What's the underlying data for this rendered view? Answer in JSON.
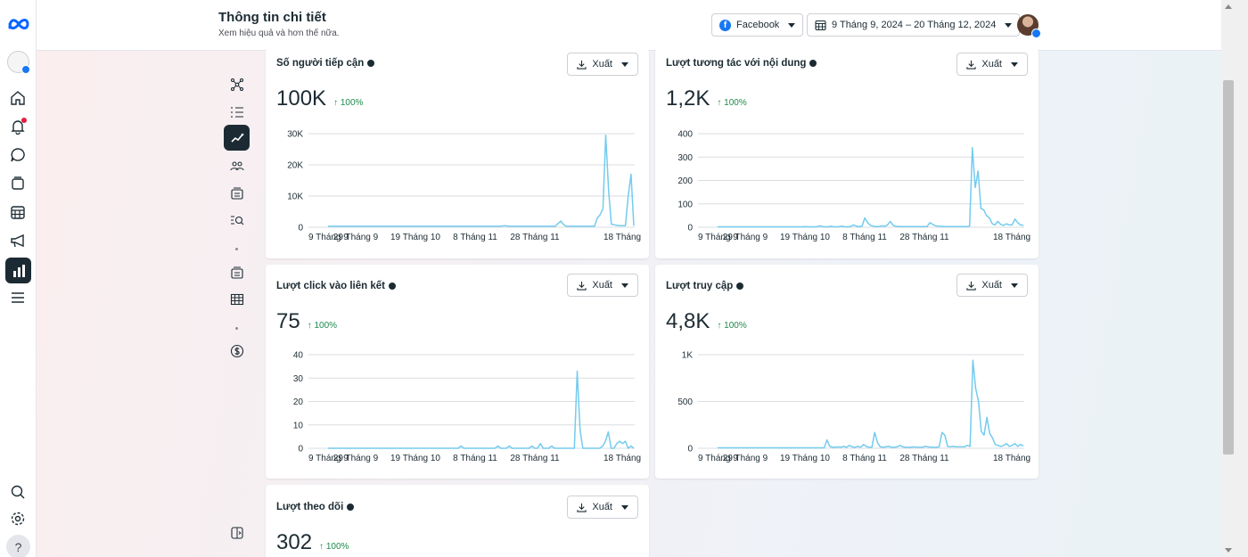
{
  "header": {
    "title": "Thông tin chi tiết",
    "subtitle": "Xem hiệu quả và hơn thế nữa.",
    "platform_label": "Facebook",
    "date_range": "9 Tháng 9, 2024 – 20 Tháng 12, 2024"
  },
  "rail": {
    "items": [
      "home-icon",
      "bell-icon",
      "chat-icon",
      "posts-icon",
      "calendar-icon",
      "megaphone-icon",
      "insights-icon",
      "menu-icon"
    ],
    "bottom": [
      "search-icon",
      "gear-icon"
    ],
    "help_label": "?"
  },
  "subnav": [
    "network-icon",
    "list-icon",
    "trend-icon",
    "audience-icon",
    "content-icon",
    "search-list-icon",
    "media-icon",
    "table-icon",
    "dollar-icon"
  ],
  "export_label": "Xuất",
  "x_tick_labels": [
    "9 Tháng 9",
    "29 Tháng 9",
    "19 Tháng 10",
    "8 Tháng 11",
    "28 Tháng 11",
    "18 Tháng"
  ],
  "colors": {
    "line": "#74cbee",
    "accent": "#1877f2",
    "positive": "#1f8a4c",
    "dark": "#1c2b33"
  },
  "cards": [
    {
      "title": "Số người tiếp cận",
      "value": "100K",
      "change": "↑ 100%",
      "chart_data": {
        "type": "line",
        "ylim": [
          0,
          30000
        ],
        "y_ticks": [
          0,
          10000,
          20000,
          30000
        ],
        "y_tick_labels": [
          "0",
          "10K",
          "20K",
          "30K"
        ],
        "values": [
          300,
          300,
          300,
          300,
          300,
          300,
          300,
          300,
          300,
          300,
          300,
          300,
          300,
          300,
          300,
          300,
          300,
          300,
          300,
          300,
          300,
          300,
          300,
          300,
          300,
          300,
          300,
          300,
          300,
          300,
          300,
          300,
          300,
          300,
          300,
          300,
          300,
          300,
          300,
          300,
          300,
          300,
          300,
          300,
          300,
          300,
          300,
          300,
          300,
          300,
          300,
          300,
          300,
          300,
          300,
          300,
          300,
          300,
          300,
          300,
          300,
          300,
          400,
          500,
          400,
          300,
          300,
          300,
          300,
          300,
          300,
          300,
          300,
          300,
          300,
          300,
          300,
          300,
          300,
          300,
          300,
          300,
          1200,
          2000,
          800,
          300,
          300,
          300,
          300,
          300,
          300,
          300,
          300,
          300,
          300,
          300,
          3000,
          4000,
          6000,
          29500,
          12000,
          1000,
          800,
          600,
          500,
          500,
          500,
          10000,
          17000,
          500
        ]
      }
    },
    {
      "title": "Lượt tương tác với nội dung",
      "value": "1,2K",
      "change": "↑ 100%",
      "chart_data": {
        "type": "line",
        "ylim": [
          0,
          400
        ],
        "y_ticks": [
          0,
          100,
          200,
          300,
          400
        ],
        "y_tick_labels": [
          "0",
          "100",
          "200",
          "300",
          "400"
        ],
        "values": [
          2,
          2,
          2,
          2,
          2,
          2,
          2,
          2,
          2,
          2,
          2,
          2,
          2,
          2,
          2,
          2,
          2,
          2,
          2,
          2,
          2,
          2,
          2,
          2,
          2,
          2,
          2,
          2,
          2,
          2,
          2,
          3,
          2,
          2,
          2,
          2,
          6,
          3,
          2,
          2,
          4,
          2,
          2,
          3,
          5,
          2,
          2,
          3,
          10,
          5,
          3,
          4,
          40,
          20,
          8,
          5,
          3,
          3,
          6,
          4,
          10,
          25,
          8,
          4,
          3,
          3,
          3,
          3,
          3,
          3,
          3,
          3,
          3,
          3,
          3,
          20,
          12,
          6,
          5,
          4,
          3,
          3,
          3,
          3,
          3,
          3,
          3,
          3,
          3,
          5,
          340,
          170,
          240,
          80,
          75,
          50,
          40,
          15,
          10,
          25,
          12,
          8,
          15,
          10,
          10,
          35,
          20,
          10,
          8
        ]
      }
    },
    {
      "title": "Lượt click vào liên kết",
      "value": "75",
      "change": "↑ 100%",
      "chart_data": {
        "type": "line",
        "ylim": [
          0,
          40
        ],
        "y_ticks": [
          0,
          10,
          20,
          30,
          40
        ],
        "y_tick_labels": [
          "0",
          "10",
          "20",
          "30",
          "40"
        ],
        "values": [
          0,
          0,
          0,
          0,
          0,
          0,
          0,
          0,
          0,
          0,
          0,
          0,
          0,
          0,
          0,
          0,
          0,
          0,
          0,
          0,
          0,
          0,
          0,
          0,
          0,
          0,
          0,
          0,
          0,
          0,
          0,
          0,
          0,
          0,
          0,
          0,
          0,
          0,
          0,
          0,
          0,
          0,
          0,
          0,
          0,
          0,
          0,
          1,
          0,
          0,
          0,
          0,
          0,
          0,
          0,
          0,
          0,
          0,
          0,
          0,
          1,
          0,
          0,
          0,
          1,
          0,
          0,
          0,
          0,
          0,
          0,
          0,
          1,
          0,
          0,
          2,
          0,
          0,
          0,
          1,
          0,
          0,
          0,
          0,
          0,
          0,
          0,
          0,
          33,
          8,
          0,
          0,
          0,
          0,
          0,
          0,
          0,
          1,
          3,
          7,
          0,
          0,
          2,
          3,
          2,
          3,
          0,
          1,
          0
        ]
      }
    },
    {
      "title": "Lượt truy cập",
      "value": "4,8K",
      "change": "↑ 100%",
      "chart_data": {
        "type": "line",
        "ylim": [
          0,
          1000
        ],
        "y_ticks": [
          0,
          500,
          1000
        ],
        "y_tick_labels": [
          "0",
          "500",
          "1K"
        ],
        "values": [
          5,
          5,
          5,
          5,
          5,
          5,
          5,
          5,
          5,
          5,
          5,
          5,
          5,
          5,
          5,
          5,
          5,
          5,
          5,
          5,
          5,
          5,
          5,
          5,
          5,
          5,
          5,
          5,
          5,
          5,
          5,
          5,
          5,
          5,
          5,
          5,
          5,
          5,
          5,
          90,
          20,
          10,
          10,
          15,
          10,
          20,
          10,
          30,
          15,
          10,
          20,
          10,
          40,
          20,
          10,
          10,
          170,
          60,
          15,
          10,
          15,
          20,
          10,
          10,
          15,
          30,
          15,
          10,
          10,
          10,
          15,
          10,
          10,
          10,
          20,
          15,
          10,
          10,
          10,
          15,
          170,
          140,
          20,
          15,
          20,
          15,
          15,
          15,
          15,
          30,
          20,
          940,
          640,
          500,
          180,
          140,
          330,
          160,
          110,
          40,
          30,
          20,
          30,
          50,
          20,
          30,
          50,
          20,
          40,
          25
        ]
      }
    },
    {
      "title": "Lượt theo dõi",
      "value": "302",
      "change": "↑ 100%"
    }
  ]
}
